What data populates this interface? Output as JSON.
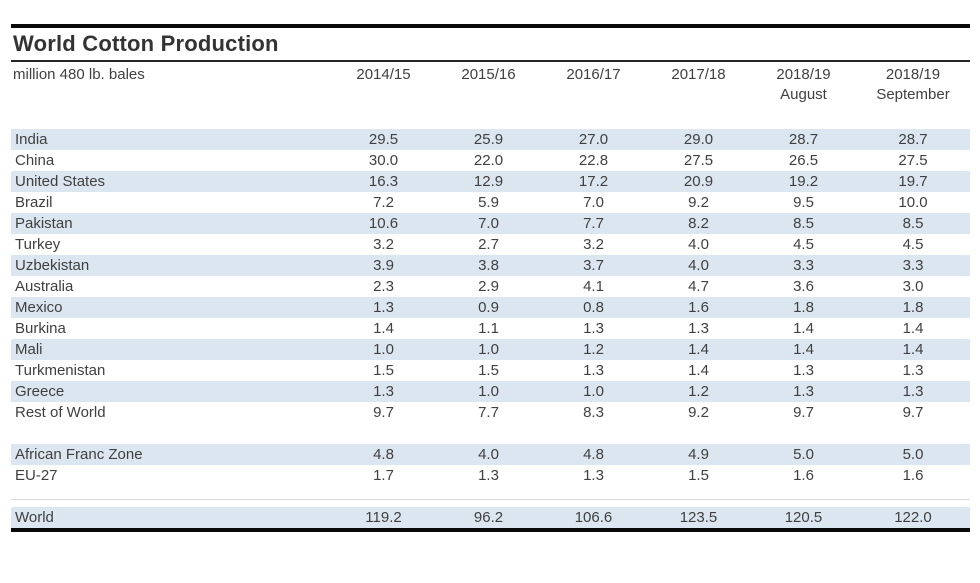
{
  "table": {
    "title": "World Cotton Production",
    "units_label": "million 480 lb. bales",
    "columns": [
      {
        "year": "2014/15",
        "sub": ""
      },
      {
        "year": "2015/16",
        "sub": ""
      },
      {
        "year": "2016/17",
        "sub": ""
      },
      {
        "year": "2017/18",
        "sub": ""
      },
      {
        "year": "2018/19",
        "sub": "August"
      },
      {
        "year": "2018/19",
        "sub": "September"
      }
    ],
    "sections": [
      {
        "name": "countries",
        "rows": [
          {
            "name": "India",
            "values": [
              "29.5",
              "25.9",
              "27.0",
              "29.0",
              "28.7",
              "28.7"
            ]
          },
          {
            "name": "China",
            "values": [
              "30.0",
              "22.0",
              "22.8",
              "27.5",
              "26.5",
              "27.5"
            ]
          },
          {
            "name": "United States",
            "values": [
              "16.3",
              "12.9",
              "17.2",
              "20.9",
              "19.2",
              "19.7"
            ]
          },
          {
            "name": "Brazil",
            "values": [
              "7.2",
              "5.9",
              "7.0",
              "9.2",
              "9.5",
              "10.0"
            ]
          },
          {
            "name": "Pakistan",
            "values": [
              "10.6",
              "7.0",
              "7.7",
              "8.2",
              "8.5",
              "8.5"
            ]
          },
          {
            "name": "Turkey",
            "values": [
              "3.2",
              "2.7",
              "3.2",
              "4.0",
              "4.5",
              "4.5"
            ]
          },
          {
            "name": "Uzbekistan",
            "values": [
              "3.9",
              "3.8",
              "3.7",
              "4.0",
              "3.3",
              "3.3"
            ]
          },
          {
            "name": "Australia",
            "values": [
              "2.3",
              "2.9",
              "4.1",
              "4.7",
              "3.6",
              "3.0"
            ]
          },
          {
            "name": "Mexico",
            "values": [
              "1.3",
              "0.9",
              "0.8",
              "1.6",
              "1.8",
              "1.8"
            ]
          },
          {
            "name": "Burkina",
            "values": [
              "1.4",
              "1.1",
              "1.3",
              "1.3",
              "1.4",
              "1.4"
            ]
          },
          {
            "name": "Mali",
            "values": [
              "1.0",
              "1.0",
              "1.2",
              "1.4",
              "1.4",
              "1.4"
            ]
          },
          {
            "name": "Turkmenistan",
            "values": [
              "1.5",
              "1.5",
              "1.3",
              "1.4",
              "1.3",
              "1.3"
            ]
          },
          {
            "name": "Greece",
            "values": [
              "1.3",
              "1.0",
              "1.0",
              "1.2",
              "1.3",
              "1.3"
            ]
          },
          {
            "name": "Rest of World",
            "values": [
              "9.7",
              "7.7",
              "8.3",
              "9.2",
              "9.7",
              "9.7"
            ]
          }
        ]
      },
      {
        "name": "aggregates",
        "rows": [
          {
            "name": "African Franc Zone",
            "values": [
              "4.8",
              "4.0",
              "4.8",
              "4.9",
              "5.0",
              "5.0"
            ]
          },
          {
            "name": "EU-27",
            "values": [
              "1.7",
              "1.3",
              "1.3",
              "1.5",
              "1.6",
              "1.6"
            ]
          }
        ]
      },
      {
        "name": "world-total",
        "rows": [
          {
            "name": "World",
            "values": [
              "119.2",
              "96.2",
              "106.6",
              "123.5",
              "120.5",
              "122.0"
            ]
          }
        ]
      }
    ]
  },
  "colors": {
    "stripe": "#dce6f1",
    "text": "#404040",
    "title_rule": "#262626",
    "outer_rule": "#0a0a0a"
  }
}
